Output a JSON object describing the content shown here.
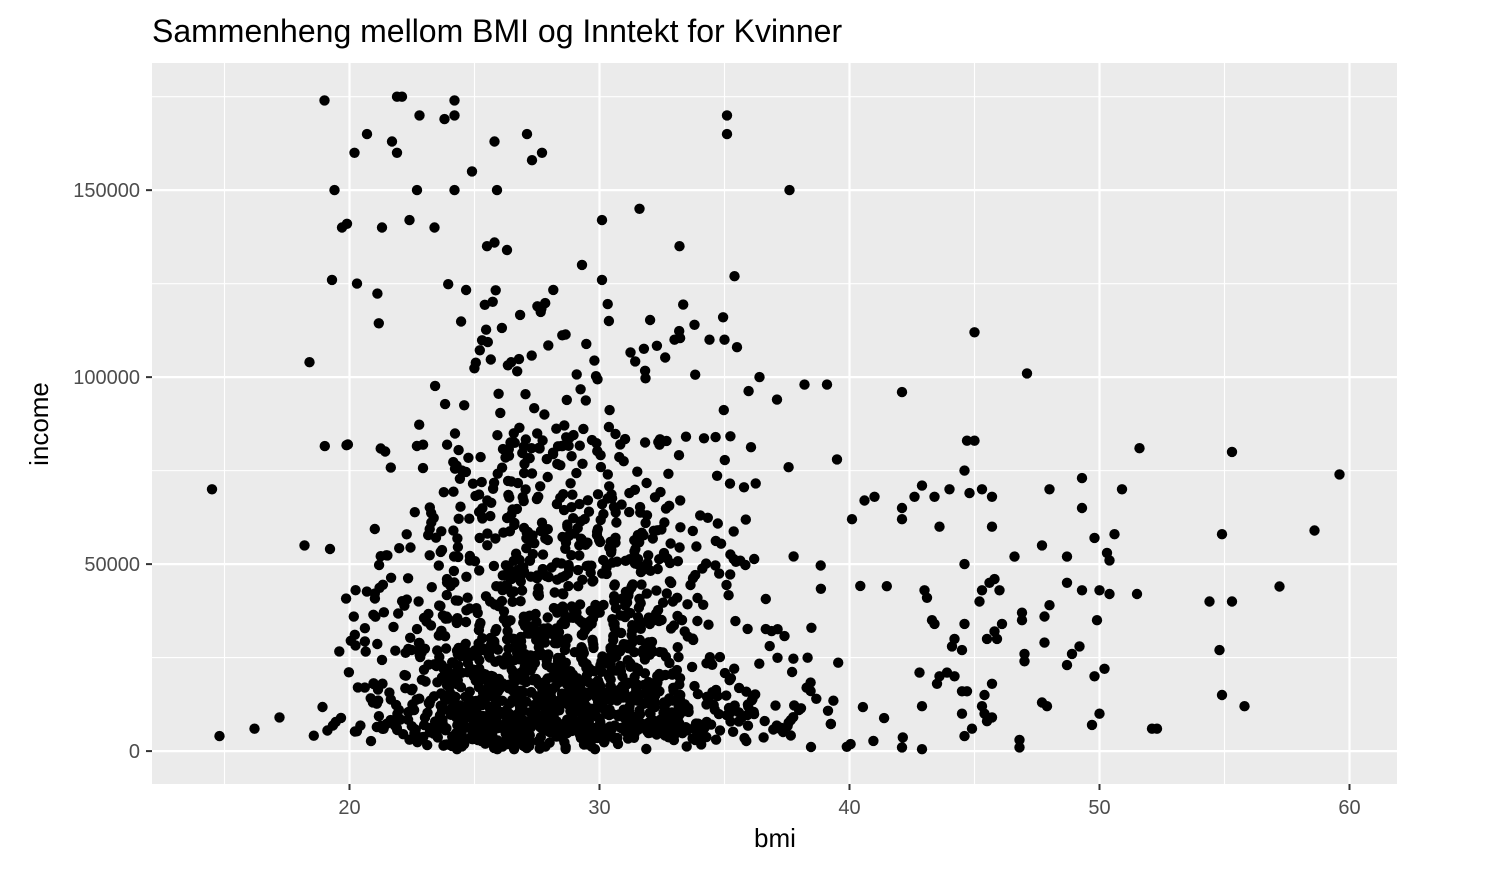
{
  "chart_data": {
    "type": "scatter",
    "title": "Sammenheng mellom BMI og Inntekt for Kvinner",
    "xlabel": "bmi",
    "ylabel": "income",
    "xlim": [
      12.1,
      61.9
    ],
    "ylim": [
      -8800,
      184000
    ],
    "x_ticks": [
      20,
      30,
      40,
      50,
      60
    ],
    "x_tick_labels": [
      "20",
      "30",
      "40",
      "50",
      "60"
    ],
    "y_ticks": [
      0,
      50000,
      100000,
      150000
    ],
    "y_tick_labels": [
      "0",
      "50000",
      "100000",
      "150000"
    ],
    "grid": true,
    "legend": "none",
    "colors": {
      "panel": "#ebebeb",
      "grid": "#ffffff",
      "point": "#000000",
      "axis_text": "#4d4d4d",
      "title": "#000000"
    },
    "outliers": [
      [
        14.5,
        70000
      ],
      [
        14.8,
        4000
      ],
      [
        16.2,
        6000
      ],
      [
        17.2,
        9000
      ],
      [
        18.2,
        55000
      ],
      [
        18.4,
        104000
      ],
      [
        19.0,
        174000
      ],
      [
        19.3,
        126000
      ],
      [
        19.4,
        150000
      ],
      [
        19.7,
        140000
      ],
      [
        19.9,
        141000
      ],
      [
        20.2,
        160000
      ],
      [
        20.7,
        165000
      ],
      [
        20.3,
        125000
      ],
      [
        21.3,
        140000
      ],
      [
        21.7,
        163000
      ],
      [
        21.9,
        160000
      ],
      [
        21.9,
        175000
      ],
      [
        22.1,
        175000
      ],
      [
        22.7,
        150000
      ],
      [
        22.8,
        170000
      ],
      [
        22.4,
        142000
      ],
      [
        23.4,
        140000
      ],
      [
        23.8,
        169000
      ],
      [
        24.2,
        174000
      ],
      [
        24.2,
        170000
      ],
      [
        24.2,
        150000
      ],
      [
        24.9,
        155000
      ],
      [
        25.8,
        163000
      ],
      [
        25.9,
        150000
      ],
      [
        27.1,
        165000
      ],
      [
        27.3,
        158000
      ],
      [
        27.7,
        160000
      ],
      [
        25.5,
        135000
      ],
      [
        25.8,
        136000
      ],
      [
        26.3,
        134000
      ],
      [
        31.6,
        145000
      ],
      [
        30.1,
        142000
      ],
      [
        29.3,
        130000
      ],
      [
        30.1,
        126000
      ],
      [
        33.2,
        135000
      ],
      [
        35.1,
        170000
      ],
      [
        35.1,
        165000
      ],
      [
        35.4,
        127000
      ],
      [
        37.6,
        150000
      ],
      [
        33.0,
        110000
      ],
      [
        33.8,
        114000
      ],
      [
        34.4,
        110000
      ],
      [
        35.0,
        110000
      ],
      [
        35.5,
        108000
      ],
      [
        36.4,
        100000
      ],
      [
        37.1,
        94000
      ],
      [
        38.2,
        98000
      ],
      [
        39.1,
        98000
      ],
      [
        39.5,
        78000
      ],
      [
        42.1,
        96000
      ],
      [
        45.0,
        112000
      ],
      [
        47.1,
        101000
      ],
      [
        51.6,
        81000
      ],
      [
        55.3,
        80000
      ],
      [
        59.6,
        74000
      ],
      [
        58.6,
        59000
      ],
      [
        57.2,
        44000
      ],
      [
        55.3,
        40000
      ],
      [
        54.4,
        40000
      ],
      [
        54.9,
        58000
      ],
      [
        54.8,
        27000
      ],
      [
        54.9,
        15000
      ],
      [
        55.8,
        12000
      ],
      [
        52.1,
        6000
      ],
      [
        52.3,
        6000
      ],
      [
        51.5,
        42000
      ],
      [
        50.9,
        70000
      ],
      [
        50.6,
        58000
      ],
      [
        50.3,
        53000
      ],
      [
        50.4,
        51000
      ],
      [
        49.8,
        57000
      ],
      [
        49.3,
        73000
      ],
      [
        49.3,
        65000
      ],
      [
        48.0,
        70000
      ],
      [
        47.7,
        55000
      ],
      [
        48.7,
        52000
      ],
      [
        48.7,
        45000
      ],
      [
        49.3,
        43000
      ],
      [
        50.0,
        43000
      ],
      [
        50.4,
        42000
      ],
      [
        49.9,
        35000
      ],
      [
        49.2,
        28000
      ],
      [
        48.9,
        26000
      ],
      [
        48.7,
        23000
      ],
      [
        49.8,
        20000
      ],
      [
        50.2,
        22000
      ],
      [
        50.0,
        10000
      ],
      [
        49.7,
        7000
      ],
      [
        47.7,
        13000
      ],
      [
        47.9,
        12000
      ],
      [
        46.8,
        3000
      ],
      [
        46.8,
        1000
      ],
      [
        47.0,
        26000
      ],
      [
        47.0,
        24000
      ],
      [
        47.8,
        36000
      ],
      [
        48.0,
        39000
      ],
      [
        47.8,
        29000
      ],
      [
        46.6,
        52000
      ],
      [
        45.7,
        60000
      ],
      [
        45.7,
        68000
      ],
      [
        45.3,
        70000
      ],
      [
        44.7,
        83000
      ],
      [
        45.0,
        83000
      ],
      [
        44.6,
        75000
      ],
      [
        44.8,
        69000
      ],
      [
        44.0,
        70000
      ],
      [
        43.6,
        60000
      ],
      [
        42.9,
        71000
      ],
      [
        43.4,
        68000
      ],
      [
        42.6,
        68000
      ],
      [
        42.1,
        65000
      ],
      [
        42.1,
        62000
      ],
      [
        41.0,
        68000
      ],
      [
        40.6,
        67000
      ],
      [
        40.1,
        62000
      ],
      [
        43.0,
        43000
      ],
      [
        43.1,
        41000
      ],
      [
        42.8,
        21000
      ],
      [
        42.9,
        12000
      ],
      [
        42.1,
        1000
      ],
      [
        42.9,
        500
      ],
      [
        44.6,
        4000
      ],
      [
        44.9,
        6000
      ],
      [
        45.5,
        8000
      ],
      [
        45.7,
        9000
      ],
      [
        44.5,
        10000
      ],
      [
        44.5,
        16000
      ],
      [
        44.7,
        16000
      ],
      [
        45.7,
        18000
      ],
      [
        45.4,
        15000
      ],
      [
        45.3,
        12000
      ],
      [
        44.2,
        20000
      ],
      [
        43.5,
        18000
      ],
      [
        43.6,
        20000
      ],
      [
        43.9,
        21000
      ],
      [
        44.5,
        27000
      ],
      [
        44.1,
        28000
      ],
      [
        44.2,
        30000
      ],
      [
        45.5,
        30000
      ],
      [
        45.9,
        30000
      ],
      [
        45.8,
        32000
      ],
      [
        46.1,
        34000
      ],
      [
        44.6,
        34000
      ],
      [
        43.3,
        35000
      ],
      [
        43.4,
        34000
      ],
      [
        44.6,
        50000
      ],
      [
        45.2,
        40000
      ],
      [
        45.3,
        43000
      ],
      [
        45.6,
        45000
      ],
      [
        45.8,
        46000
      ],
      [
        46.0,
        43000
      ],
      [
        46.9,
        35000
      ],
      [
        46.9,
        37000
      ],
      [
        45.4,
        10000
      ]
    ]
  }
}
